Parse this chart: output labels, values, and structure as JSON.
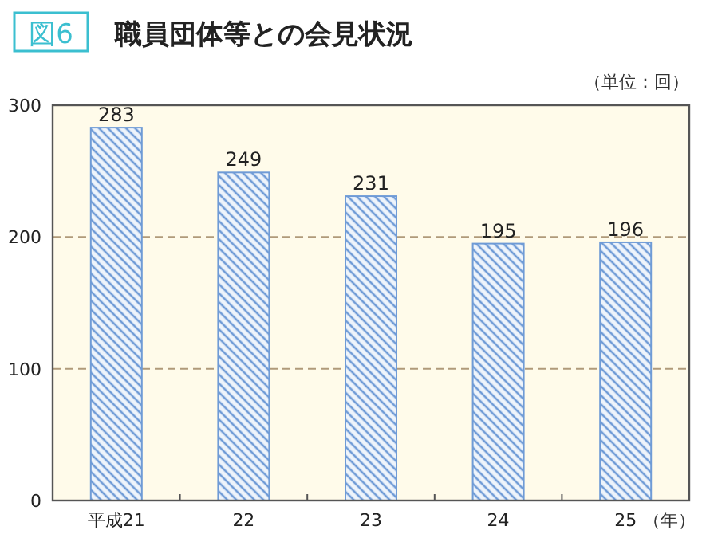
{
  "chart_data": {
    "type": "bar",
    "title": "職員団体等との会見状況",
    "annotations": [
      "図6"
    ],
    "ylabel": "（単位：回）",
    "xlabel": "（年）",
    "categories": [
      "平成21",
      "22",
      "23",
      "24",
      "25"
    ],
    "values": [
      283,
      249,
      231,
      195,
      196
    ],
    "color": "#6f9bd6",
    "ylim": [
      0,
      300
    ],
    "yticks": [
      0,
      100,
      200,
      300
    ],
    "grid": "y",
    "data_labels": true
  }
}
